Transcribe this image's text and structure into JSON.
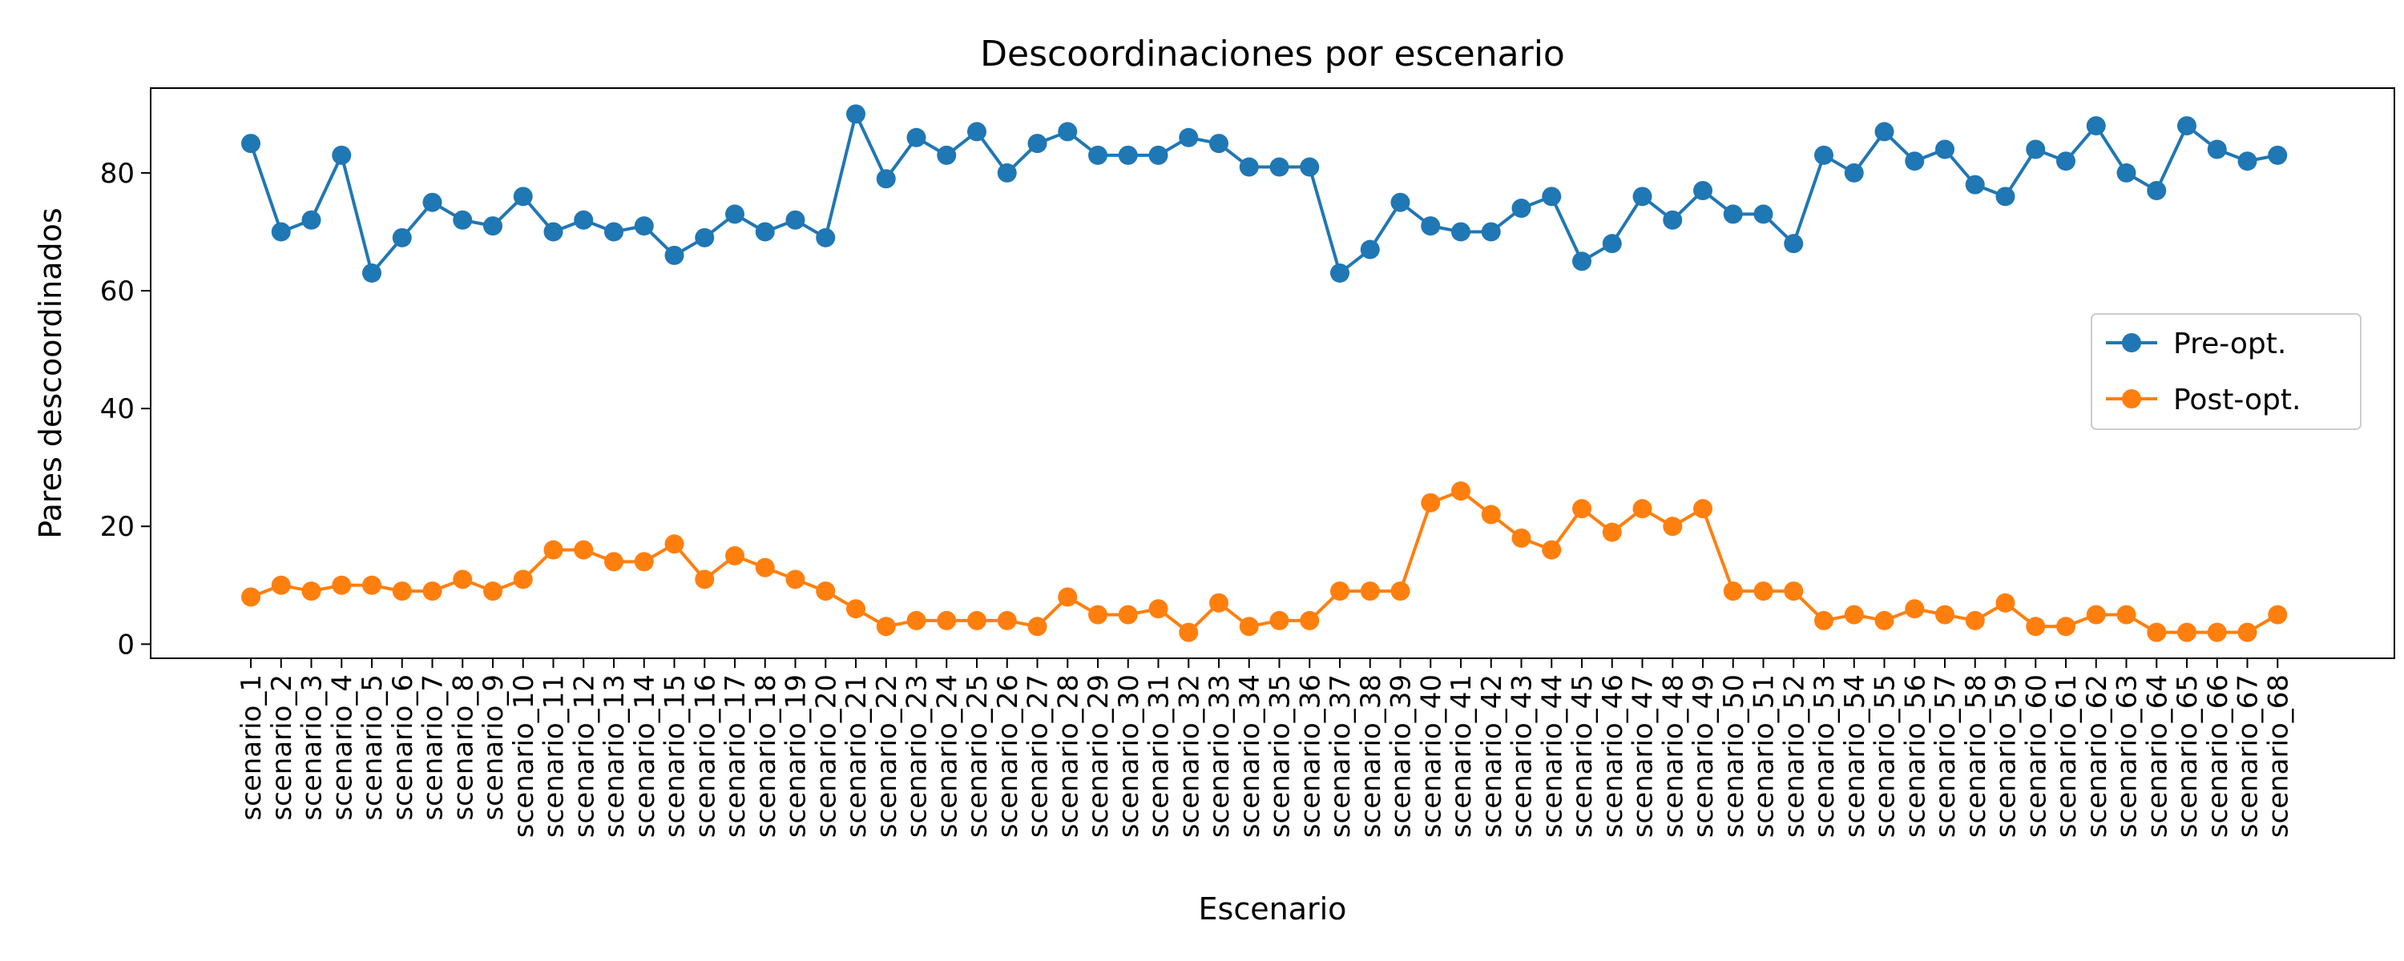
{
  "chart_data": {
    "type": "line",
    "title": "Descoordinaciones por escenario",
    "xlabel": "Escenario",
    "ylabel": "Pares descoordinados",
    "categories": [
      "scenario_1",
      "scenario_2",
      "scenario_3",
      "scenario_4",
      "scenario_5",
      "scenario_6",
      "scenario_7",
      "scenario_8",
      "scenario_9",
      "scenario_10",
      "scenario_11",
      "scenario_12",
      "scenario_13",
      "scenario_14",
      "scenario_15",
      "scenario_16",
      "scenario_17",
      "scenario_18",
      "scenario_19",
      "scenario_20",
      "scenario_21",
      "scenario_22",
      "scenario_23",
      "scenario_24",
      "scenario_25",
      "scenario_26",
      "scenario_27",
      "scenario_28",
      "scenario_29",
      "scenario_30",
      "scenario_31",
      "scenario_32",
      "scenario_33",
      "scenario_34",
      "scenario_35",
      "scenario_36",
      "scenario_37",
      "scenario_38",
      "scenario_39",
      "scenario_40",
      "scenario_41",
      "scenario_42",
      "scenario_43",
      "scenario_44",
      "scenario_45",
      "scenario_46",
      "scenario_47",
      "scenario_48",
      "scenario_49",
      "scenario_50",
      "scenario_51",
      "scenario_52",
      "scenario_53",
      "scenario_54",
      "scenario_55",
      "scenario_56",
      "scenario_57",
      "scenario_58",
      "scenario_59",
      "scenario_60",
      "scenario_61",
      "scenario_62",
      "scenario_63",
      "scenario_64",
      "scenario_65",
      "scenario_66",
      "scenario_67",
      "scenario_68"
    ],
    "series": [
      {
        "name": "Pre-opt.",
        "color": "#1f77b4",
        "marker": "circle",
        "values": [
          85,
          70,
          72,
          83,
          63,
          69,
          75,
          72,
          71,
          76,
          70,
          72,
          70,
          71,
          66,
          69,
          73,
          70,
          72,
          69,
          90,
          79,
          86,
          83,
          87,
          80,
          85,
          87,
          83,
          83,
          83,
          86,
          85,
          81,
          81,
          81,
          63,
          67,
          75,
          71,
          70,
          70,
          74,
          76,
          65,
          68,
          76,
          72,
          77,
          73,
          73,
          68,
          83,
          80,
          87,
          82,
          84,
          78,
          76,
          84,
          82,
          88,
          80,
          77,
          88,
          84,
          82,
          83
        ]
      },
      {
        "name": "Post-opt.",
        "color": "#ff7f0e",
        "marker": "circle",
        "values": [
          8,
          10,
          9,
          10,
          10,
          9,
          9,
          11,
          9,
          11,
          16,
          16,
          14,
          14,
          17,
          11,
          15,
          13,
          11,
          9,
          6,
          3,
          4,
          4,
          4,
          4,
          3,
          8,
          5,
          5,
          6,
          2,
          7,
          3,
          4,
          4,
          9,
          9,
          9,
          24,
          26,
          22,
          18,
          16,
          23,
          19,
          23,
          20,
          23,
          9,
          9,
          9,
          4,
          5,
          4,
          6,
          5,
          4,
          7,
          3,
          3,
          5,
          5,
          2,
          2,
          2,
          2,
          5
        ]
      }
    ],
    "yticks": [
      0,
      20,
      40,
      60,
      80
    ],
    "ylim": [
      -2.4,
      94.4
    ],
    "grid": false,
    "legend_position": "center-right"
  }
}
